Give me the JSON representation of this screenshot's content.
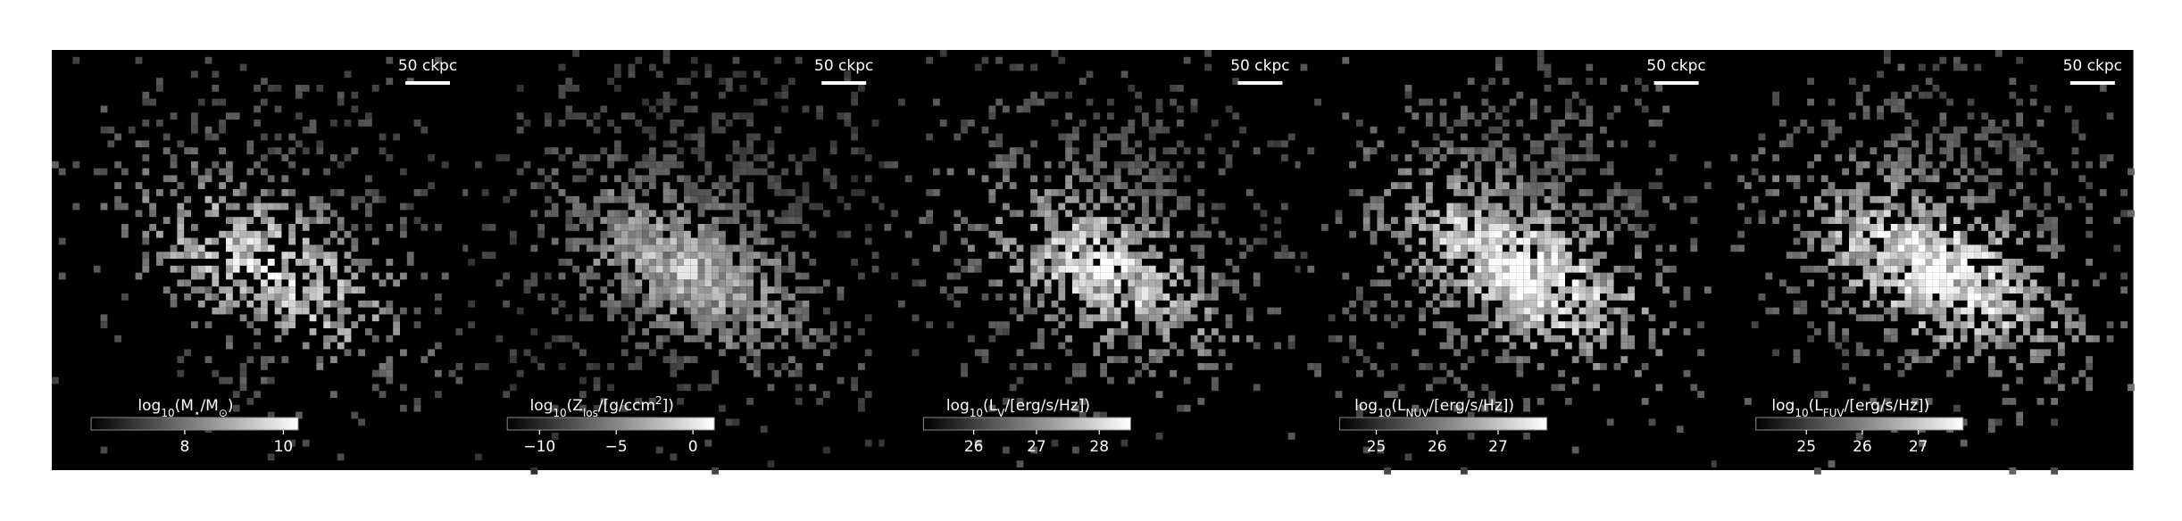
{
  "chart_data": [
    {
      "type": "image",
      "scalebar": "50 ckpc",
      "colorbar_label": [
        {
          "text": "log"
        },
        {
          "text": "10",
          "shift": "sub"
        },
        {
          "text": "(M"
        },
        {
          "text": "⋆",
          "shift": "sub"
        },
        {
          "text": "/M"
        },
        {
          "text": "⊙",
          "shift": "sub"
        },
        {
          "text": ")"
        }
      ],
      "clim": [
        6.1,
        10.3
      ],
      "cticks": [
        8,
        10
      ]
    },
    {
      "type": "image",
      "scalebar": "50 ckpc",
      "colorbar_label": [
        {
          "text": "log"
        },
        {
          "text": "10",
          "shift": "sub"
        },
        {
          "text": "(Z"
        },
        {
          "text": "los",
          "shift": "sub"
        },
        {
          "text": "/[g/ccm"
        },
        {
          "text": "2",
          "shift": "super"
        },
        {
          "text": "])"
        }
      ],
      "clim": [
        -12.1,
        1.4
      ],
      "cticks": [
        {
          "value": -10,
          "label": "−10"
        },
        {
          "value": -5,
          "label": "−5"
        },
        0
      ]
    },
    {
      "type": "image",
      "scalebar": "50 ckpc",
      "colorbar_label": [
        {
          "text": "log"
        },
        {
          "text": "10",
          "shift": "sub"
        },
        {
          "text": "(L"
        },
        {
          "text": "V",
          "shift": "sub"
        },
        {
          "text": "/[erg/s/Hz])"
        }
      ],
      "clim": [
        25.2,
        28.5
      ],
      "cticks": [
        26,
        27,
        28
      ]
    },
    {
      "type": "image",
      "scalebar": "50 ckpc",
      "colorbar_label": [
        {
          "text": "log"
        },
        {
          "text": "10",
          "shift": "sub"
        },
        {
          "text": "(L"
        },
        {
          "text": "NUV",
          "shift": "sub"
        },
        {
          "text": "/[erg/s/Hz])"
        }
      ],
      "clim": [
        24.4,
        27.8
      ],
      "cticks": [
        25,
        26,
        27
      ]
    },
    {
      "type": "image",
      "scalebar": "50 ckpc",
      "colorbar_label": [
        {
          "text": "log"
        },
        {
          "text": "10",
          "shift": "sub"
        },
        {
          "text": "(L"
        },
        {
          "text": "FUV",
          "shift": "sub"
        },
        {
          "text": "/[erg/s/Hz])"
        }
      ],
      "clim": [
        24.1,
        27.8
      ],
      "cticks": [
        25,
        26,
        27
      ]
    }
  ]
}
